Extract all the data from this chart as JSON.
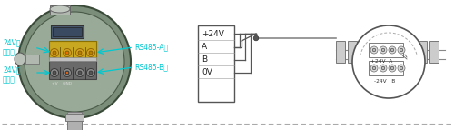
{
  "bg_color": "#ffffff",
  "cyan_color": "#00c8d0",
  "dark_gray": "#555555",
  "mid_gray": "#888888",
  "light_gray": "#cccccc",
  "dashed_color": "#aaaaaa",
  "label_left_1": "24V电\n源正极",
  "label_left_2": "24V电\n源负极",
  "label_right_1": "RS485-A极",
  "label_right_2": "RS485-B极",
  "box_labels": [
    "+24V",
    "A",
    "B",
    "0V"
  ],
  "right_label_top": "+24V  A",
  "right_label_bot": "-24V   B",
  "device_outer_color": "#7b8e7a",
  "device_inner_color": "#9aaa98",
  "device_rim_color": "#5a6a58",
  "terminal_gold": "#c8a820",
  "terminal_gray": "#7a7a7a",
  "connector_color": "#aaaaaa"
}
